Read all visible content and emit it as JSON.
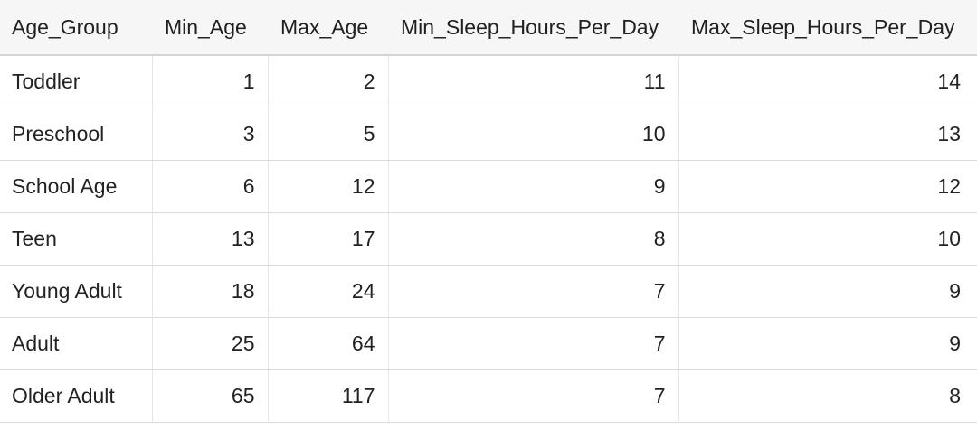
{
  "table": {
    "columns": [
      "Age_Group",
      "Min_Age",
      "Max_Age",
      "Min_Sleep_Hours_Per_Day",
      "Max_Sleep_Hours_Per_Day"
    ],
    "rows": [
      [
        "Toddler",
        "1",
        "2",
        "11",
        "14"
      ],
      [
        "Preschool",
        "3",
        "5",
        "10",
        "13"
      ],
      [
        "School Age",
        "6",
        "12",
        "9",
        "12"
      ],
      [
        "Teen",
        "13",
        "17",
        "8",
        "10"
      ],
      [
        "Young Adult",
        "18",
        "24",
        "7",
        "9"
      ],
      [
        "Adult",
        "25",
        "64",
        "7",
        "9"
      ],
      [
        "Older Adult",
        "65",
        "117",
        "7",
        "8"
      ]
    ]
  }
}
